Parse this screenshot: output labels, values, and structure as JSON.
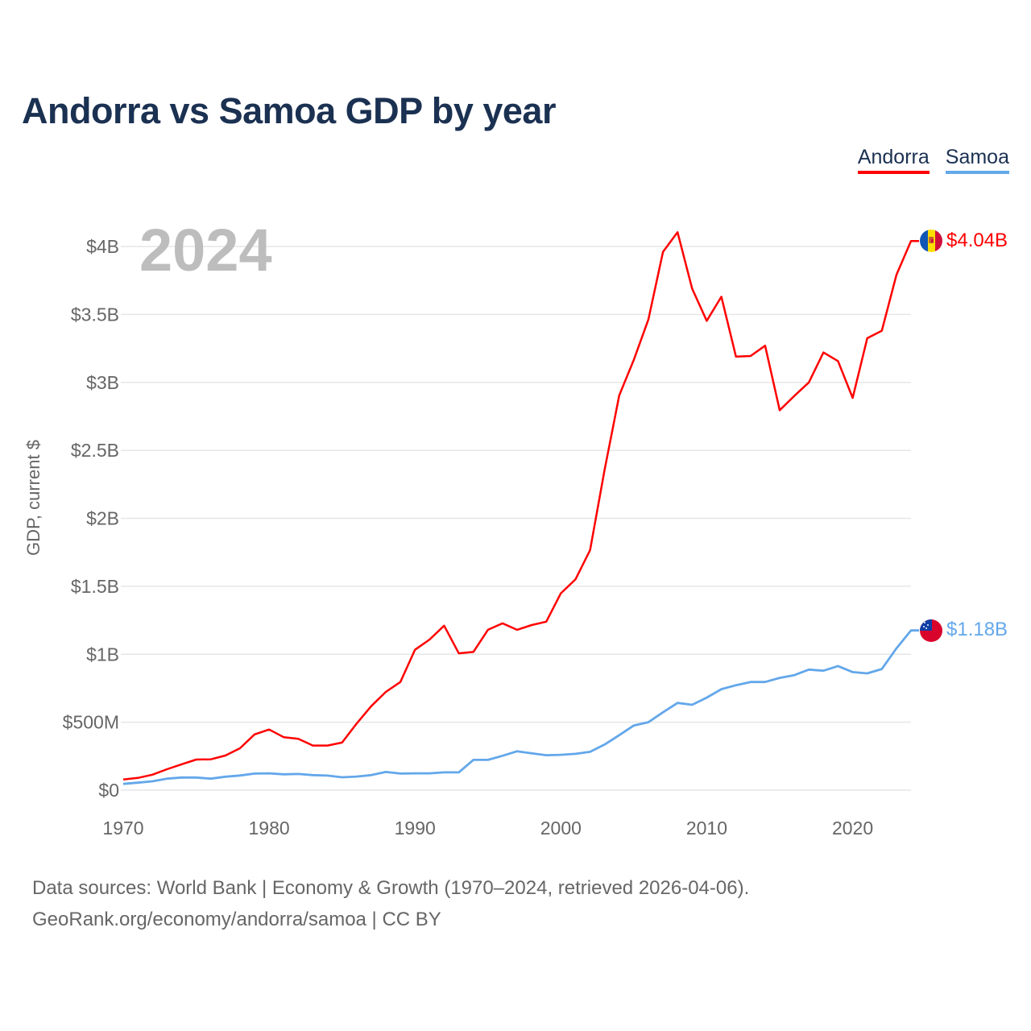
{
  "title": "Andorra vs Samoa GDP by year",
  "current_year": "2024",
  "footer": {
    "line1": "Data sources: World Bank | Economy & Growth (1970–2024, retrieved 2026-04-06).",
    "line2": "GeoRank.org/economy/andorra/samoa | CC BY"
  },
  "chart_data": {
    "type": "line",
    "title": "Andorra vs Samoa GDP by year",
    "xlabel": "",
    "ylabel": "GDP, current $",
    "xlim": [
      1970,
      2024
    ],
    "ylim": [
      0,
      4.2
    ],
    "units": "billions USD",
    "grid": true,
    "legend_position": "top-right",
    "x_ticks": [
      1970,
      1980,
      1990,
      2000,
      2010,
      2020
    ],
    "x_tick_labels": [
      "1970",
      "1980",
      "1990",
      "2000",
      "2010",
      "2020"
    ],
    "y_ticks": [
      0,
      0.5,
      1,
      1.5,
      2,
      2.5,
      3,
      3.5,
      4
    ],
    "y_tick_labels": [
      "$0",
      "$500M",
      "$1B",
      "$1.5B",
      "$2B",
      "$2.5B",
      "$3B",
      "$3.5B",
      "$4B"
    ],
    "x": [
      1970,
      1971,
      1972,
      1973,
      1974,
      1975,
      1976,
      1977,
      1978,
      1979,
      1980,
      1981,
      1982,
      1983,
      1984,
      1985,
      1986,
      1987,
      1988,
      1989,
      1990,
      1991,
      1992,
      1993,
      1994,
      1995,
      1996,
      1997,
      1998,
      1999,
      2000,
      2001,
      2002,
      2003,
      2004,
      2005,
      2006,
      2007,
      2008,
      2009,
      2010,
      2011,
      2012,
      2013,
      2014,
      2015,
      2016,
      2017,
      2018,
      2019,
      2020,
      2021,
      2022,
      2023,
      2024
    ],
    "series": [
      {
        "name": "Andorra",
        "color": "#ff0000",
        "end_label": "$4.04B",
        "values": [
          0.079,
          0.09,
          0.114,
          0.154,
          0.19,
          0.225,
          0.227,
          0.255,
          0.308,
          0.41,
          0.446,
          0.39,
          0.378,
          0.328,
          0.328,
          0.35,
          0.49,
          0.618,
          0.723,
          0.796,
          1.033,
          1.108,
          1.21,
          1.007,
          1.017,
          1.18,
          1.227,
          1.18,
          1.215,
          1.24,
          1.448,
          1.55,
          1.766,
          2.36,
          2.904,
          3.166,
          3.463,
          3.96,
          4.105,
          3.69,
          3.453,
          3.63,
          3.19,
          3.194,
          3.27,
          2.795,
          2.9,
          3.0,
          3.22,
          3.157,
          2.886,
          3.325,
          3.38,
          3.79,
          4.04
        ]
      },
      {
        "name": "Samoa",
        "color": "#63a7ea",
        "end_label": "$1.18B",
        "values": [
          0.046,
          0.055,
          0.065,
          0.085,
          0.093,
          0.093,
          0.085,
          0.099,
          0.108,
          0.122,
          0.124,
          0.117,
          0.119,
          0.111,
          0.107,
          0.095,
          0.1,
          0.111,
          0.134,
          0.122,
          0.124,
          0.124,
          0.131,
          0.131,
          0.223,
          0.223,
          0.253,
          0.286,
          0.271,
          0.257,
          0.26,
          0.267,
          0.282,
          0.336,
          0.405,
          0.476,
          0.5,
          0.573,
          0.642,
          0.628,
          0.681,
          0.743,
          0.772,
          0.796,
          0.796,
          0.826,
          0.846,
          0.887,
          0.879,
          0.913,
          0.869,
          0.859,
          0.891,
          1.043,
          1.175
        ]
      }
    ]
  }
}
